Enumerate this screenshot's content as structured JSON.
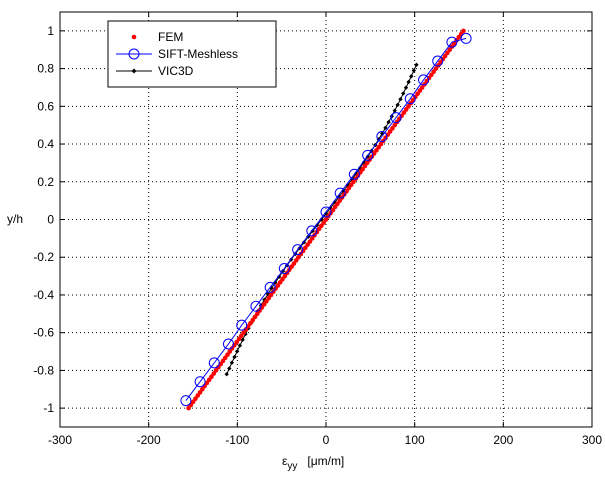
{
  "chart_data": {
    "type": "scatter",
    "title": "",
    "xlabel": "ε",
    "xlabel_sub": "yy",
    "xlabel_unit": "[μm/m]",
    "ylabel": "y/h",
    "xlim": [
      -300,
      300
    ],
    "ylim": [
      -1.1,
      1.1
    ],
    "xticks": [
      "-300",
      "-200",
      "-100",
      "0",
      "100",
      "200",
      "300"
    ],
    "yticks": [
      "-1",
      "-0.8",
      "-0.6",
      "-0.4",
      "-0.2",
      "0",
      "0.2",
      "0.4",
      "0.6",
      "0.8",
      "1"
    ],
    "grid": true,
    "legend_position": "top-left",
    "series": [
      {
        "name": "FEM",
        "color": "#ff0000",
        "marker": "dot",
        "line": "none",
        "x_range": [
          -155,
          155
        ],
        "y_range": [
          -1,
          1
        ],
        "count": 121
      },
      {
        "name": "SIFT-Meshless",
        "color": "#0000ff",
        "marker": "circle",
        "line": "solid",
        "x": [
          -158,
          -142,
          -126,
          -110,
          -95,
          -79,
          -63,
          -47,
          -32,
          -16,
          0,
          16,
          32,
          47,
          63,
          79,
          95,
          110,
          126,
          142,
          158
        ],
        "y": [
          -0.96,
          -0.86,
          -0.76,
          -0.66,
          -0.56,
          -0.46,
          -0.36,
          -0.26,
          -0.16,
          -0.06,
          0.04,
          0.14,
          0.24,
          0.34,
          0.44,
          0.54,
          0.64,
          0.74,
          0.84,
          0.94,
          0.96
        ]
      },
      {
        "name": "VIC3D",
        "color": "#000000",
        "marker": "diamond",
        "line": "solid",
        "x_range": [
          -112,
          102
        ],
        "y_range": [
          -0.82,
          0.82
        ],
        "count": 55
      }
    ]
  }
}
